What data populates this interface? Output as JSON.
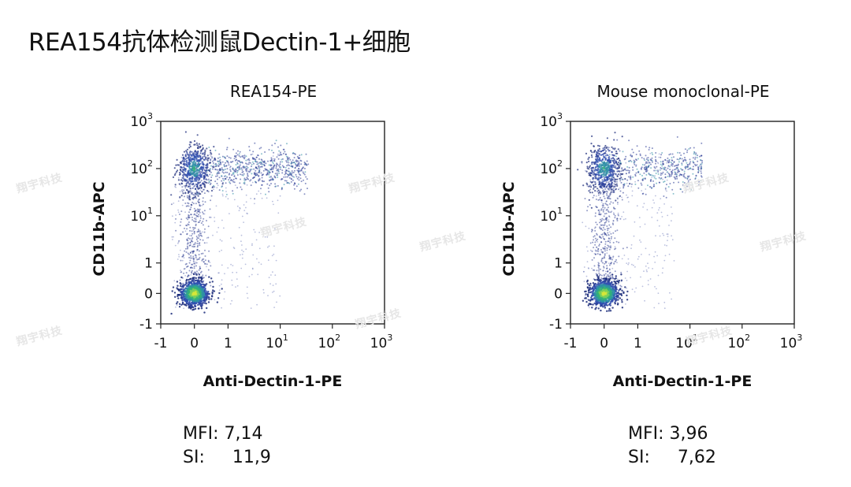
{
  "page": {
    "title": "REA154抗体检测鼠Dectin-1+细胞",
    "watermark": "翔宇科技"
  },
  "chart_data": [
    {
      "type": "scatter",
      "title": "REA154-PE",
      "xlabel": "Anti-Dectin-1-PE",
      "ylabel": "CD11b-APC",
      "x_scale": "biexponential",
      "y_scale": "biexponential",
      "xlim": [
        -1,
        1000
      ],
      "ylim": [
        -1,
        1000
      ],
      "x_ticks": [
        {
          "base": "-1",
          "sup": "",
          "value": -1
        },
        {
          "base": "0",
          "sup": "",
          "value": 0
        },
        {
          "base": "1",
          "sup": "",
          "value": 1
        },
        {
          "base": "10",
          "sup": "1",
          "value": 10
        },
        {
          "base": "10",
          "sup": "2",
          "value": 100
        },
        {
          "base": "10",
          "sup": "3",
          "value": 1000
        }
      ],
      "y_ticks": [
        {
          "base": "-1",
          "sup": "",
          "value": -1
        },
        {
          "base": "0",
          "sup": "",
          "value": 0
        },
        {
          "base": "1",
          "sup": "",
          "value": 1
        },
        {
          "base": "10",
          "sup": "1",
          "value": 10
        },
        {
          "base": "10",
          "sup": "2",
          "value": 100
        },
        {
          "base": "10",
          "sup": "3",
          "value": 1000
        }
      ],
      "populations": [
        {
          "x": 0.0,
          "y": 0.0,
          "density": "high"
        },
        {
          "x": 0.0,
          "y": 100,
          "density": "high"
        },
        {
          "x": 10,
          "y": 100,
          "density": "medium"
        }
      ],
      "stats": {
        "mfi_label": "MFI:",
        "mfi": "7,14",
        "si_label": "SI:",
        "si": "11,9"
      }
    },
    {
      "type": "scatter",
      "title": "Mouse monoclonal-PE",
      "xlabel": "Anti-Dectin-1-PE",
      "ylabel": "CD11b-APC",
      "x_scale": "biexponential",
      "y_scale": "biexponential",
      "xlim": [
        -1,
        1000
      ],
      "ylim": [
        -1,
        1000
      ],
      "x_ticks": [
        {
          "base": "-1",
          "sup": "",
          "value": -1
        },
        {
          "base": "0",
          "sup": "",
          "value": 0
        },
        {
          "base": "1",
          "sup": "",
          "value": 1
        },
        {
          "base": "10",
          "sup": "1",
          "value": 10
        },
        {
          "base": "10",
          "sup": "2",
          "value": 100
        },
        {
          "base": "10",
          "sup": "3",
          "value": 1000
        }
      ],
      "y_ticks": [
        {
          "base": "-1",
          "sup": "",
          "value": -1
        },
        {
          "base": "0",
          "sup": "",
          "value": 0
        },
        {
          "base": "1",
          "sup": "",
          "value": 1
        },
        {
          "base": "10",
          "sup": "1",
          "value": 10
        },
        {
          "base": "10",
          "sup": "2",
          "value": 100
        },
        {
          "base": "10",
          "sup": "3",
          "value": 1000
        }
      ],
      "populations": [
        {
          "x": 0.0,
          "y": 0.0,
          "density": "high"
        },
        {
          "x": 0.0,
          "y": 100,
          "density": "high"
        },
        {
          "x": 5,
          "y": 100,
          "density": "medium"
        }
      ],
      "stats": {
        "mfi_label": "MFI:",
        "mfi": "3,96",
        "si_label": "SI:",
        "si": "7,62"
      }
    }
  ]
}
